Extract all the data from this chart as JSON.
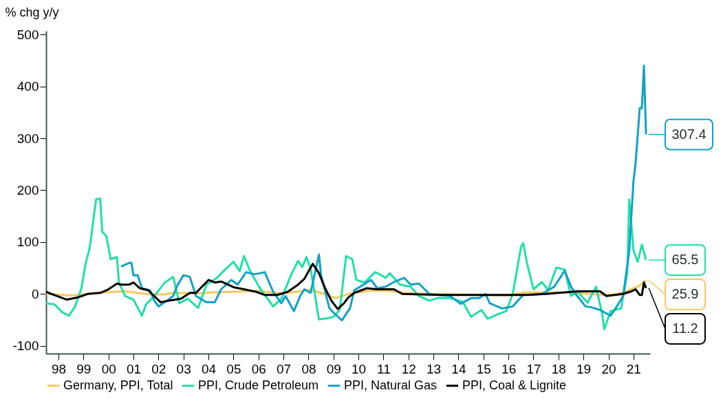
{
  "chart_data": {
    "type": "line",
    "ylabel": "% chg y/y",
    "xlim": [
      "1998-01-01",
      "2022-03-01"
    ],
    "xticks": [
      {
        "value": "1998-07-01",
        "label": "98"
      },
      {
        "value": "1999-07-01",
        "label": "99"
      },
      {
        "value": "2000-07-01",
        "label": "00"
      },
      {
        "value": "2001-07-01",
        "label": "01"
      },
      {
        "value": "2002-07-01",
        "label": "02"
      },
      {
        "value": "2003-07-01",
        "label": "03"
      },
      {
        "value": "2004-07-01",
        "label": "04"
      },
      {
        "value": "2005-07-01",
        "label": "05"
      },
      {
        "value": "2006-07-01",
        "label": "06"
      },
      {
        "value": "2007-07-01",
        "label": "07"
      },
      {
        "value": "2008-07-01",
        "label": "08"
      },
      {
        "value": "2009-07-01",
        "label": "09"
      },
      {
        "value": "2010-07-01",
        "label": "10"
      },
      {
        "value": "2011-07-01",
        "label": "11"
      },
      {
        "value": "2012-07-01",
        "label": "12"
      },
      {
        "value": "2013-07-01",
        "label": "13"
      },
      {
        "value": "2014-07-01",
        "label": "14"
      },
      {
        "value": "2015-07-01",
        "label": "15"
      },
      {
        "value": "2016-07-01",
        "label": "16"
      },
      {
        "value": "2017-07-01",
        "label": "17"
      },
      {
        "value": "2018-07-01",
        "label": "18"
      },
      {
        "value": "2019-07-01",
        "label": "19"
      },
      {
        "value": "2020-07-01",
        "label": "20"
      },
      {
        "value": "2021-07-01",
        "label": "21"
      }
    ],
    "ylim": [
      -115,
      507
    ],
    "yticks": [
      -100,
      0,
      100,
      200,
      300,
      400,
      500
    ],
    "grid": false,
    "legend": "bottom",
    "line_style": "solid",
    "marker": "none",
    "series": [
      {
        "name": "Germany, PPI, Total",
        "color": "#f9c75c",
        "x": [
          "1998-01",
          "1998-06",
          "1999-01",
          "1999-07",
          "2000-01",
          "2000-09",
          "2001-03",
          "2001-09",
          "2002-03",
          "2002-09",
          "2003-03",
          "2004-01",
          "2004-09",
          "2005-06",
          "2006-06",
          "2007-06",
          "2008-01",
          "2008-08",
          "2009-01",
          "2009-08",
          "2010-03",
          "2010-12",
          "2011-09",
          "2012-06",
          "2013-06",
          "2014-06",
          "2015-06",
          "2016-06",
          "2017-03",
          "2018-06",
          "2019-06",
          "2020-05",
          "2020-10",
          "2021-03",
          "2021-06",
          "2021-09",
          "2021-11",
          "2021-12",
          "2022-01"
        ],
        "values": [
          0,
          -1,
          -3,
          -1,
          2,
          4,
          5,
          2,
          -1,
          -1,
          2,
          1,
          3,
          4,
          6,
          1,
          4,
          8,
          2,
          -8,
          1,
          6,
          6,
          2,
          0,
          -1,
          -2,
          -3,
          3,
          3,
          1,
          -2,
          -1,
          4,
          9,
          14,
          19,
          24,
          25.9
        ],
        "value_labels": [
          null,
          null,
          null,
          null,
          null,
          null,
          null,
          null,
          null,
          null,
          null,
          null,
          null,
          null,
          null,
          null,
          null,
          null,
          null,
          null,
          null,
          null,
          null,
          null,
          null,
          null,
          null,
          null,
          null,
          null,
          null,
          null,
          null,
          null,
          null,
          null,
          null,
          null,
          "25.9"
        ]
      },
      {
        "name": "PPI, Crude Petroleum",
        "color": "#1de0a8",
        "x": [
          "1998-01",
          "1998-05",
          "1998-09",
          "1998-12",
          "1999-03",
          "1999-06",
          "1999-08",
          "1999-10",
          "2000-01",
          "2000-03",
          "2000-04",
          "2000-06",
          "2000-08",
          "2000-11",
          "2000-12",
          "2001-03",
          "2001-07",
          "2001-11",
          "2002-01",
          "2002-05",
          "2002-10",
          "2003-02",
          "2003-05",
          "2003-09",
          "2004-02",
          "2004-06",
          "2004-11",
          "2005-03",
          "2005-07",
          "2005-10",
          "2005-12",
          "2006-03",
          "2006-08",
          "2007-02",
          "2007-06",
          "2007-11",
          "2008-02",
          "2008-04",
          "2008-06",
          "2008-08",
          "2008-12",
          "2009-04",
          "2009-07",
          "2009-10",
          "2010-01",
          "2010-04",
          "2010-06",
          "2010-10",
          "2011-03",
          "2011-06",
          "2011-08",
          "2011-10",
          "2012-03",
          "2012-08",
          "2012-12",
          "2013-05",
          "2013-09",
          "2014-03",
          "2014-09",
          "2015-01",
          "2015-06",
          "2015-09",
          "2016-02",
          "2016-06",
          "2016-09",
          "2017-01",
          "2017-02",
          "2017-04",
          "2017-07",
          "2017-11",
          "2018-02",
          "2018-06",
          "2018-10",
          "2019-01",
          "2019-04",
          "2019-09",
          "2020-01",
          "2020-04",
          "2020-05",
          "2020-08",
          "2021-01",
          "2021-04",
          "2021-05",
          "2021-07",
          "2021-09",
          "2021-11",
          "2022-01"
        ],
        "values": [
          -18,
          -20,
          -36,
          -42,
          -24,
          11,
          58,
          89,
          182,
          184,
          120,
          111,
          67,
          71,
          22,
          -4,
          -11,
          -42,
          -20,
          -4,
          22,
          33,
          -18,
          -9,
          -27,
          18,
          31,
          47,
          62,
          44,
          73,
          44,
          9,
          -24,
          -9,
          40,
          64,
          52,
          71,
          49,
          -49,
          -47,
          -44,
          -31,
          73,
          67,
          27,
          22,
          42,
          36,
          31,
          40,
          18,
          14,
          -4,
          -13,
          -8,
          -8,
          -15,
          -44,
          -31,
          -48,
          -39,
          -33,
          0,
          91,
          98,
          58,
          9,
          23,
          7,
          51,
          47,
          -4,
          5,
          -17,
          14,
          -39,
          -68,
          -33,
          -28,
          40,
          182,
          84,
          62,
          95,
          65.5
        ],
        "value_labels": [
          null,
          null,
          null,
          null,
          null,
          null,
          null,
          null,
          null,
          null,
          null,
          null,
          null,
          null,
          null,
          null,
          null,
          null,
          null,
          null,
          null,
          null,
          null,
          null,
          null,
          null,
          null,
          null,
          null,
          null,
          null,
          null,
          null,
          null,
          null,
          null,
          null,
          null,
          null,
          null,
          null,
          null,
          null,
          null,
          null,
          null,
          null,
          null,
          null,
          null,
          null,
          null,
          null,
          null,
          null,
          null,
          null,
          null,
          null,
          null,
          null,
          null,
          null,
          null,
          null,
          null,
          null,
          null,
          null,
          null,
          null,
          null,
          null,
          null,
          null,
          null,
          null,
          null,
          null,
          null,
          null,
          null,
          null,
          null,
          null,
          null,
          "65.5"
        ]
      },
      {
        "name": "PPI, Natural Gas",
        "color": "#10a0c8",
        "x": [
          "2001-01",
          "2001-05",
          "2001-06",
          "2001-07",
          "2001-09",
          "2001-11",
          "2002-03",
          "2002-05",
          "2002-07",
          "2002-11",
          "2003-02",
          "2003-04",
          "2003-07",
          "2003-10",
          "2004-01",
          "2004-06",
          "2004-10",
          "2005-01",
          "2005-06",
          "2005-09",
          "2006-01",
          "2006-05",
          "2006-08",
          "2006-10",
          "2007-02",
          "2007-06",
          "2007-08",
          "2007-12",
          "2008-03",
          "2008-05",
          "2008-08",
          "2008-12",
          "2009-01",
          "2009-05",
          "2009-07",
          "2009-11",
          "2010-03",
          "2010-05",
          "2010-11",
          "2011-01",
          "2011-04",
          "2011-08",
          "2011-12",
          "2012-05",
          "2012-08",
          "2012-12",
          "2013-05",
          "2013-10",
          "2014-03",
          "2014-08",
          "2015-01",
          "2015-05",
          "2015-08",
          "2015-10",
          "2016-04",
          "2016-09",
          "2017-02",
          "2017-06",
          "2017-11",
          "2018-05",
          "2018-10",
          "2019-01",
          "2019-04",
          "2019-08",
          "2019-11",
          "2020-03",
          "2020-08",
          "2020-11",
          "2021-02",
          "2021-05",
          "2021-07",
          "2021-08",
          "2021-10",
          "2021-11",
          "2021-12",
          "2022-01"
        ],
        "values": [
          53,
          60,
          60,
          36,
          36,
          11,
          7,
          -13,
          -24,
          -13,
          -4,
          16,
          36,
          33,
          -4,
          -16,
          -16,
          9,
          27,
          18,
          42,
          38,
          40,
          42,
          4,
          -18,
          -4,
          -33,
          -4,
          9,
          2,
          76,
          36,
          -27,
          -36,
          -51,
          -27,
          7,
          22,
          27,
          11,
          14,
          23,
          31,
          18,
          20,
          0,
          -2,
          -4,
          -19,
          -8,
          -8,
          0,
          -18,
          -28,
          -24,
          -2,
          -2,
          0,
          14,
          45,
          14,
          -4,
          -24,
          -26,
          -31,
          -42,
          -24,
          -4,
          84,
          217,
          252,
          358,
          358,
          440,
          307.4
        ],
        "value_labels": [
          null,
          null,
          null,
          null,
          null,
          null,
          null,
          null,
          null,
          null,
          null,
          null,
          null,
          null,
          null,
          null,
          null,
          null,
          null,
          null,
          null,
          null,
          null,
          null,
          null,
          null,
          null,
          null,
          null,
          null,
          null,
          null,
          null,
          null,
          null,
          null,
          null,
          null,
          null,
          null,
          null,
          null,
          null,
          null,
          null,
          null,
          null,
          null,
          null,
          null,
          null,
          null,
          null,
          null,
          null,
          null,
          null,
          null,
          null,
          null,
          null,
          null,
          null,
          null,
          null,
          null,
          null,
          null,
          null,
          null,
          null,
          null,
          null,
          null,
          null,
          "307.4"
        ]
      },
      {
        "name": "PPI, Coal & Lignite",
        "color": "#000000",
        "x": [
          "1998-01",
          "1998-05",
          "1998-11",
          "1999-04",
          "1999-09",
          "2000-03",
          "2000-07",
          "2000-11",
          "2001-01",
          "2001-05",
          "2001-07",
          "2001-10",
          "2002-02",
          "2002-08",
          "2002-12",
          "2003-06",
          "2003-10",
          "2004-01",
          "2004-07",
          "2004-10",
          "2005-01",
          "2005-07",
          "2005-12",
          "2006-06",
          "2006-10",
          "2007-04",
          "2007-09",
          "2008-02",
          "2008-05",
          "2008-09",
          "2008-12",
          "2009-03",
          "2009-06",
          "2009-09",
          "2009-12",
          "2010-02",
          "2010-05",
          "2010-11",
          "2011-04",
          "2011-12",
          "2012-04",
          "2013-10",
          "2015-08",
          "2017-02",
          "2018-01",
          "2019-04",
          "2020-03",
          "2020-06",
          "2020-10",
          "2021-02",
          "2021-06",
          "2021-08",
          "2021-10",
          "2021-11",
          "2021-12",
          "2022-01"
        ],
        "values": [
          4,
          -2,
          -11,
          -7,
          0,
          2,
          9,
          20,
          18,
          18,
          22,
          11,
          7,
          -16,
          -13,
          -9,
          2,
          2,
          27,
          22,
          24,
          13,
          9,
          4,
          -2,
          -2,
          4,
          18,
          29,
          58,
          40,
          11,
          -13,
          -29,
          -18,
          -7,
          2,
          11,
          9,
          9,
          0,
          -2,
          -2,
          -2,
          0,
          5,
          5,
          -4,
          -2,
          0,
          5,
          9,
          -2,
          -2,
          22,
          11.2
        ],
        "value_labels": [
          null,
          null,
          null,
          null,
          null,
          null,
          null,
          null,
          null,
          null,
          null,
          null,
          null,
          null,
          null,
          null,
          null,
          null,
          null,
          null,
          null,
          null,
          null,
          null,
          null,
          null,
          null,
          null,
          null,
          null,
          null,
          null,
          null,
          null,
          null,
          null,
          null,
          null,
          null,
          null,
          null,
          null,
          null,
          null,
          null,
          null,
          null,
          null,
          null,
          null,
          null,
          null,
          null,
          null,
          null,
          "11.2"
        ]
      }
    ]
  }
}
